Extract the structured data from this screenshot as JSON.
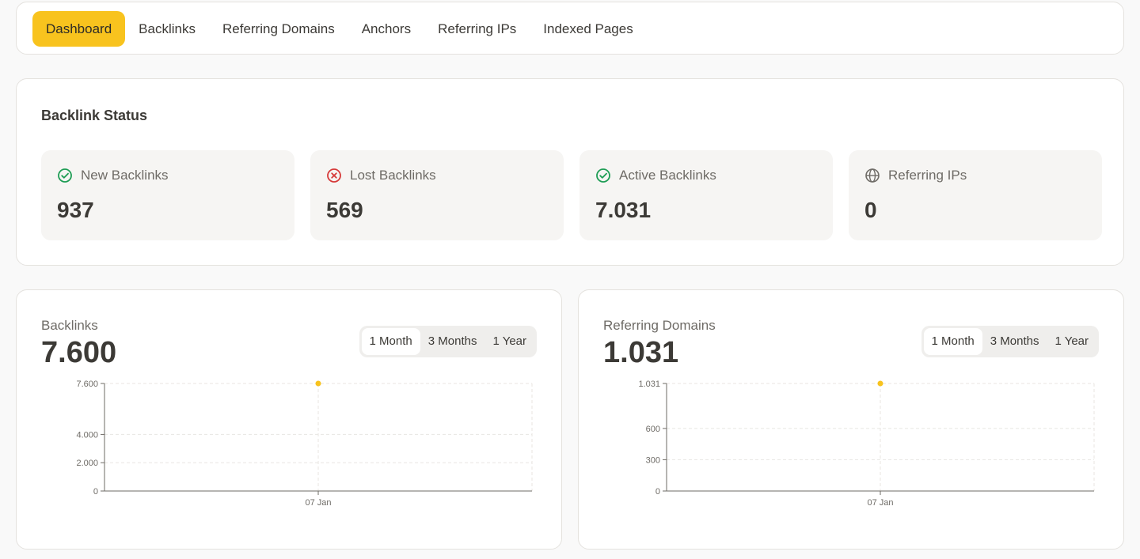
{
  "nav": {
    "items": [
      {
        "label": "Dashboard",
        "active": true
      },
      {
        "label": "Backlinks",
        "active": false
      },
      {
        "label": "Referring Domains",
        "active": false
      },
      {
        "label": "Anchors",
        "active": false
      },
      {
        "label": "Referring IPs",
        "active": false
      },
      {
        "label": "Indexed Pages",
        "active": false
      }
    ]
  },
  "status": {
    "title": "Backlink Status",
    "tiles": [
      {
        "icon": "check-circle-icon",
        "label": "New Backlinks",
        "value": "937",
        "color": "#1f9d55"
      },
      {
        "icon": "x-circle-icon",
        "label": "Lost Backlinks",
        "value": "569",
        "color": "#d63a3a"
      },
      {
        "icon": "check-circle-icon",
        "label": "Active Backlinks",
        "value": "7.031",
        "color": "#1f9d55"
      },
      {
        "icon": "globe-icon",
        "label": "Referring IPs",
        "value": "0",
        "color": "#6e6b66"
      }
    ]
  },
  "charts": [
    {
      "label": "Backlinks",
      "value": "7.600",
      "ranges": [
        "1 Month",
        "3 Months",
        "1 Year"
      ],
      "active_range": "1 Month"
    },
    {
      "label": "Referring Domains",
      "value": "1.031",
      "ranges": [
        "1 Month",
        "3 Months",
        "1 Year"
      ],
      "active_range": "1 Month"
    }
  ],
  "colors": {
    "accent": "#f8c31e",
    "point": "#f8c31e"
  },
  "chart_data": [
    {
      "type": "scatter",
      "x": [
        "07 Jan"
      ],
      "values": [
        7600
      ],
      "yticks": [
        0,
        2000,
        4000,
        7600
      ],
      "ytick_labels": [
        "0",
        "2.000",
        "4.000",
        "7.600"
      ],
      "ylim": [
        0,
        7600
      ],
      "grid": true
    },
    {
      "type": "scatter",
      "x": [
        "07 Jan"
      ],
      "values": [
        1031
      ],
      "yticks": [
        0,
        300,
        600,
        1031
      ],
      "ytick_labels": [
        "0",
        "300",
        "600",
        "1.031"
      ],
      "ylim": [
        0,
        1031
      ],
      "grid": true
    }
  ]
}
